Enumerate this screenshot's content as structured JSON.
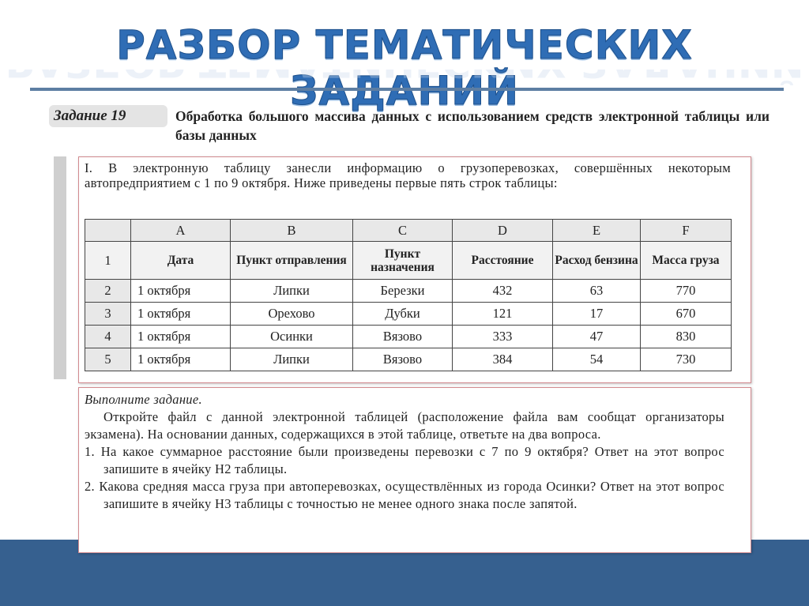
{
  "slide_title": "РАЗБОР ТЕМАТИЧЕСКИХ ЗАДАНИЙ",
  "task": {
    "badge": "Задание 19",
    "title": "Обработка большого массива данных с использованием средств электронной таблицы или базы данных"
  },
  "part1": {
    "intro": "I. В электронную таблицу занесли информацию о грузоперевозках, совершённых некоторым автопредприятием с 1 по 9 октября. Ниже приведены первые пять строк таблицы:",
    "table": {
      "columns": [
        "A",
        "B",
        "C",
        "D",
        "E",
        "F"
      ],
      "header_row_number": "1",
      "headers": [
        "Дата",
        "Пункт отправления",
        "Пункт назначения",
        "Расстояние",
        "Расход бензина",
        "Масса груза"
      ],
      "rows": [
        {
          "n": "2",
          "cells": [
            "1 октября",
            "Липки",
            "Березки",
            "432",
            "63",
            "770"
          ]
        },
        {
          "n": "3",
          "cells": [
            "1 октября",
            "Орехово",
            "Дубки",
            "121",
            "17",
            "670"
          ]
        },
        {
          "n": "4",
          "cells": [
            "1 октября",
            "Осинки",
            "Вязово",
            "333",
            "47",
            "830"
          ]
        },
        {
          "n": "5",
          "cells": [
            "1 октября",
            "Липки",
            "Вязово",
            "384",
            "54",
            "730"
          ]
        }
      ]
    }
  },
  "part2": {
    "heading": "Выполните задание.",
    "paragraph": "Откройте файл с данной электронной таблицей (расположение файла вам сообщат организаторы экзамена). На основании данных, содержащихся в этой таблице, ответьте на два вопроса.",
    "questions": [
      "1. На какое суммарное расстояние были произведены перевозки с 7 по 9 октября? Ответ на этот вопрос запишите в ячейку H2 таблицы.",
      "2. Какова средняя масса груза при автоперевозках, осуществлённых из города Осинки? Ответ на этот вопрос запишите в ячейку H3 таблицы с точностью не менее одного знака после запятой."
    ]
  },
  "colors": {
    "accent_blue": "#36608f",
    "title_blue": "#2f6db5",
    "box_border": "#d28a8f"
  }
}
